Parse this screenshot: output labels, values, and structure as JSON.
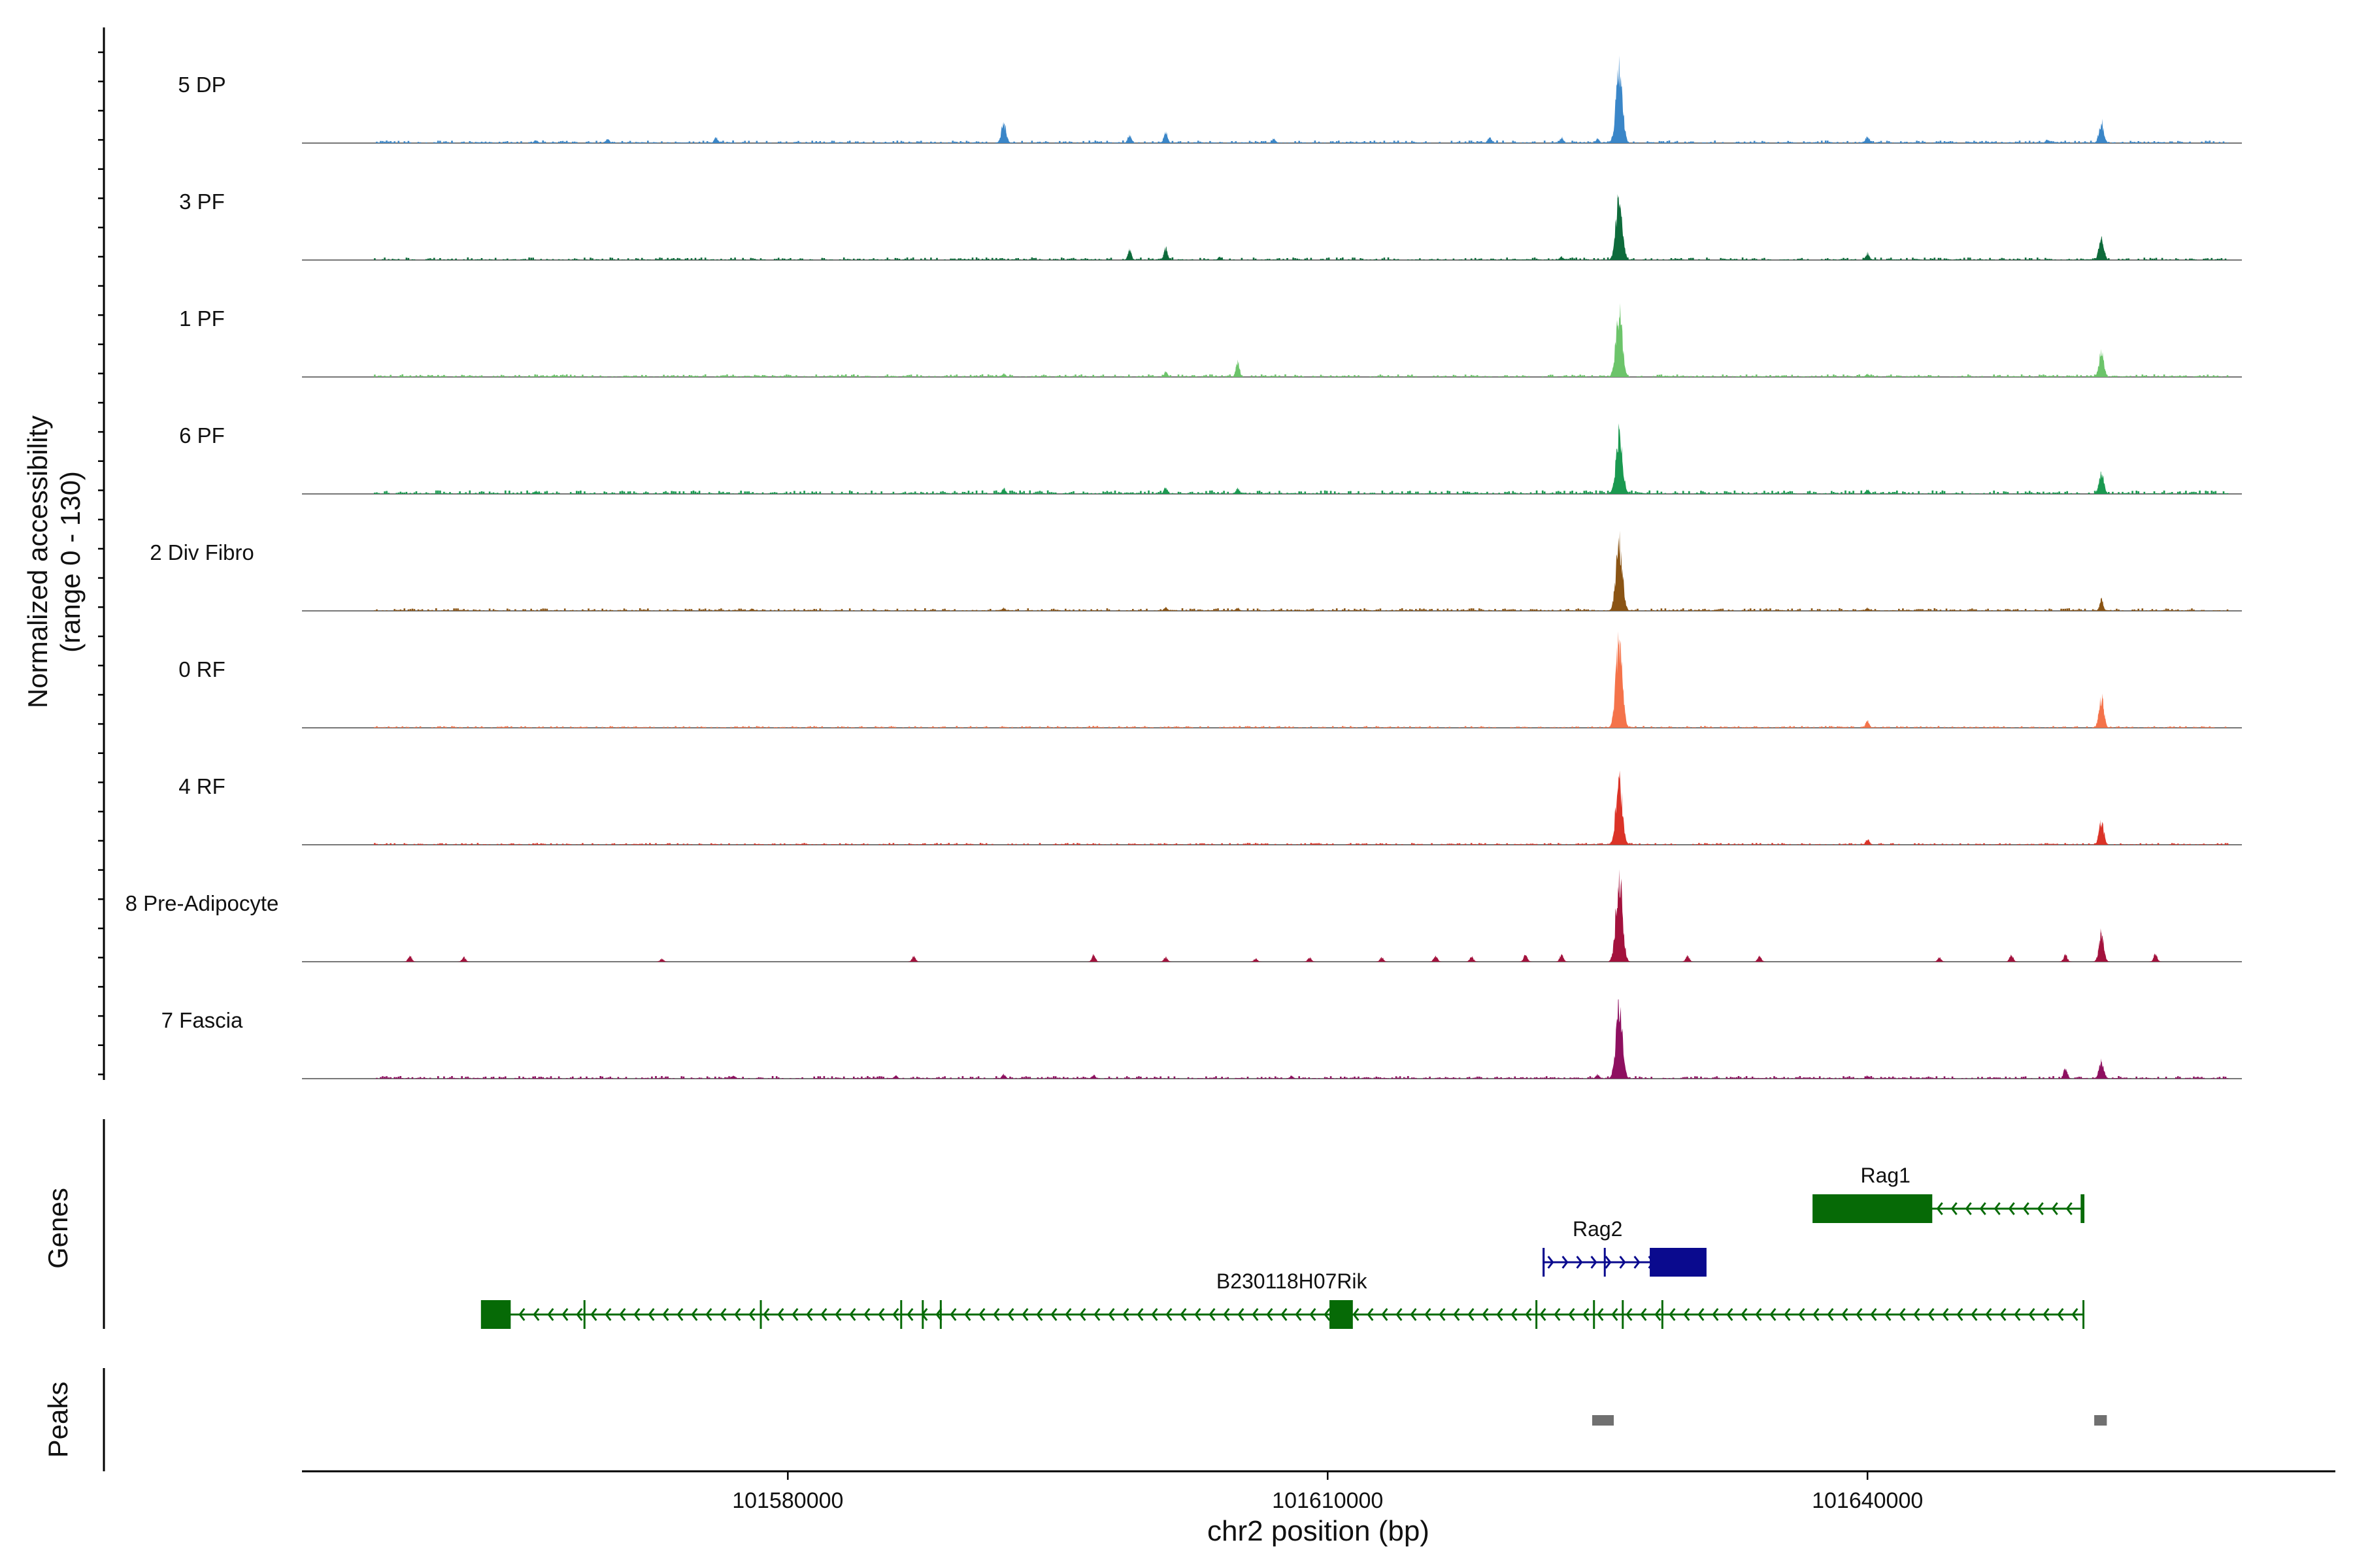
{
  "chart_data": {
    "type": "area",
    "title": "",
    "ylabel_line1": "Normalized accessibility",
    "ylabel_line2": "(range 0 - 130)",
    "xlabel": "chr2 position (bp)",
    "ylim": [
      0,
      130
    ],
    "xlim": [
      101553000,
      101666000
    ],
    "x_ticks": [
      101580000,
      101610000,
      101640000
    ],
    "x_tick_labels": [
      "101580000",
      "101610000",
      "101640000"
    ],
    "track_labels": {
      "genes": "Genes",
      "peaks": "Peaks"
    },
    "series": [
      {
        "name": "5 DP",
        "color": "#3A86C8",
        "noise": 3,
        "step": 110,
        "peaks": [
          [
            101566000,
            4
          ],
          [
            101570000,
            6
          ],
          [
            101576000,
            8
          ],
          [
            101592000,
            28
          ],
          [
            101599000,
            12
          ],
          [
            101601000,
            16
          ],
          [
            101607000,
            6
          ],
          [
            101619000,
            8
          ],
          [
            101623000,
            8
          ],
          [
            101625000,
            6
          ],
          [
            101626200,
            100
          ],
          [
            101640000,
            10
          ],
          [
            101650000,
            5
          ],
          [
            101653000,
            30
          ]
        ]
      },
      {
        "name": "3 PF",
        "color": "#0E6B3B",
        "noise": 3,
        "step": 110,
        "peaks": [
          [
            101599000,
            14
          ],
          [
            101601000,
            16
          ],
          [
            101604000,
            4
          ],
          [
            101623000,
            5
          ],
          [
            101626200,
            85
          ],
          [
            101640000,
            10
          ],
          [
            101653000,
            32
          ]
        ]
      },
      {
        "name": "1 PF",
        "color": "#6CC46A",
        "noise": 3,
        "step": 110,
        "peaks": [
          [
            101567000,
            3
          ],
          [
            101592000,
            5
          ],
          [
            101601000,
            7
          ],
          [
            101605000,
            20
          ],
          [
            101626200,
            90
          ],
          [
            101640000,
            4
          ],
          [
            101653000,
            35
          ]
        ]
      },
      {
        "name": "6 PF",
        "color": "#1A9950",
        "noise": 4,
        "step": 110,
        "peaks": [
          [
            101566000,
            4
          ],
          [
            101592000,
            8
          ],
          [
            101601000,
            9
          ],
          [
            101605000,
            8
          ],
          [
            101626200,
            83
          ],
          [
            101640000,
            6
          ],
          [
            101653000,
            30
          ]
        ]
      },
      {
        "name": "2 Div Fibro",
        "color": "#8A5414",
        "noise": 3,
        "step": 110,
        "peaks": [
          [
            101578000,
            3
          ],
          [
            101592000,
            4
          ],
          [
            101601000,
            5
          ],
          [
            101605000,
            4
          ],
          [
            101626200,
            95
          ],
          [
            101640000,
            4
          ],
          [
            101653000,
            16
          ]
        ]
      },
      {
        "name": "0 RF",
        "color": "#F4734A",
        "noise": 2,
        "step": 110,
        "peaks": [
          [
            101626200,
            120
          ],
          [
            101640000,
            10
          ],
          [
            101653000,
            42
          ]
        ]
      },
      {
        "name": "4 RF",
        "color": "#DB3327",
        "noise": 2,
        "step": 110,
        "peaks": [
          [
            101626200,
            90
          ],
          [
            101640000,
            8
          ],
          [
            101653000,
            32
          ]
        ]
      },
      {
        "name": "8 Pre-Adipocyte",
        "color": "#A3123D",
        "noise": 0,
        "step": 60,
        "peaks": [
          [
            101559000,
            8
          ],
          [
            101562000,
            6
          ],
          [
            101573000,
            4
          ],
          [
            101587000,
            7
          ],
          [
            101597000,
            9
          ],
          [
            101601000,
            6
          ],
          [
            101606000,
            4
          ],
          [
            101609000,
            6
          ],
          [
            101613000,
            6
          ],
          [
            101616000,
            8
          ],
          [
            101618000,
            7
          ],
          [
            101621000,
            10
          ],
          [
            101623000,
            10
          ],
          [
            101626200,
            120
          ],
          [
            101630000,
            8
          ],
          [
            101634000,
            8
          ],
          [
            101644000,
            6
          ],
          [
            101648000,
            9
          ],
          [
            101651000,
            10
          ],
          [
            101653000,
            40
          ],
          [
            101656000,
            10
          ]
        ]
      },
      {
        "name": "7 Fascia",
        "color": "#8E1060",
        "noise": 3,
        "step": 110,
        "peaks": [
          [
            101577000,
            4
          ],
          [
            101586000,
            4
          ],
          [
            101592000,
            6
          ],
          [
            101597000,
            5
          ],
          [
            101608000,
            4
          ],
          [
            101625000,
            6
          ],
          [
            101626200,
            98
          ],
          [
            101640000,
            4
          ],
          [
            101651000,
            16
          ],
          [
            101653000,
            24
          ]
        ]
      }
    ],
    "genes": [
      {
        "name": "B230118H07Rik",
        "strand": "-",
        "color": "#066A06",
        "row": 1,
        "start": 101563000,
        "end": 101652000,
        "label_pos": 101608000,
        "exons": [
          [
            101563000,
            101564600
          ],
          [
            101568700,
            101568900
          ],
          [
            101578500,
            101578700
          ],
          [
            101586300,
            101586400
          ],
          [
            101587500,
            101587700
          ],
          [
            101588500,
            101588700
          ],
          [
            101610100,
            101611400
          ],
          [
            101621600,
            101621800
          ],
          [
            101624800,
            101624900
          ],
          [
            101626400,
            101626600
          ],
          [
            101628600,
            101628800
          ]
        ]
      },
      {
        "name": "Rag2",
        "strand": "+",
        "color": "#0A0A8E",
        "row": 0,
        "start": 101622000,
        "end": 101631000,
        "label_pos": 101625000,
        "exons": [
          [
            101622000,
            101622150
          ],
          [
            101625400,
            101625500
          ],
          [
            101627900,
            101631000
          ]
        ]
      },
      {
        "name": "Rag1",
        "strand": "-",
        "color": "#066A06",
        "row": -1,
        "start": 101637000,
        "end": 101652000,
        "label_pos": 101641000,
        "exons": [
          [
            101637000,
            101643600
          ],
          [
            101651900,
            101652000
          ]
        ]
      }
    ],
    "peaks": [
      [
        101624700,
        101625900
      ],
      [
        101652600,
        101653300
      ]
    ]
  }
}
